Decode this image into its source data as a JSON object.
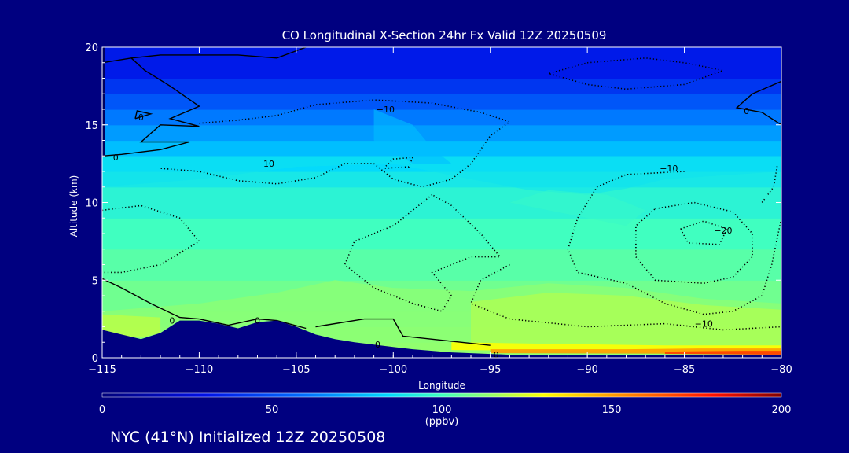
{
  "chart_data": {
    "type": "heatmap",
    "title": "CO Longitudinal X-Section 24hr  Fx Valid 12Z 20250509",
    "xlabel": "Longitude",
    "ylabel": "Altitude (km)",
    "xlim": [
      -115,
      -80
    ],
    "ylim": [
      0,
      20
    ],
    "x_ticks": [
      -115,
      -110,
      -105,
      -100,
      -95,
      -90,
      -85,
      -80
    ],
    "x_tick_labels": [
      "−115",
      "−110",
      "−105",
      "−100",
      "−95",
      "−90",
      "−85",
      "−80"
    ],
    "y_ticks": [
      0,
      5,
      10,
      15,
      20
    ],
    "y_tick_labels": [
      "0",
      "5",
      "10",
      "15",
      "20"
    ],
    "colorbar": {
      "min": 0,
      "max": 200,
      "ticks": [
        0,
        50,
        100,
        150,
        200
      ],
      "tick_labels": [
        "0",
        "50",
        "100",
        "150",
        "200"
      ],
      "unit": "(ppbv)"
    },
    "background_profile": {
      "altitudes_km": [
        0,
        1,
        2,
        3,
        5,
        7,
        9,
        11,
        12,
        13,
        14,
        15,
        16,
        17,
        18,
        20
      ],
      "co_ppbv": [
        125,
        118,
        112,
        108,
        104,
        100,
        95,
        90,
        85,
        78,
        70,
        62,
        52,
        42,
        33,
        20
      ]
    },
    "surface_boundary": {
      "longitude": [
        -115,
        -114,
        -113,
        -112,
        -111,
        -110,
        -109,
        -108,
        -107,
        -106,
        -105,
        -104,
        -103,
        -102,
        -101,
        -100,
        -99,
        -98,
        -97,
        -96,
        -95,
        -94,
        -93,
        -90,
        -85,
        -80
      ],
      "altitude_km": [
        1.8,
        1.5,
        1.2,
        1.6,
        2.4,
        2.4,
        2.2,
        1.9,
        2.3,
        2.4,
        2.0,
        1.5,
        1.2,
        1.0,
        0.85,
        0.7,
        0.55,
        0.45,
        0.35,
        0.3,
        0.25,
        0.2,
        0.18,
        0.15,
        0.15,
        0.15
      ]
    },
    "contour_labels": [
      {
        "text": "0",
        "lon": -114.3,
        "alt": 12.9
      },
      {
        "text": "0",
        "lon": -113.0,
        "alt": 15.5
      },
      {
        "text": "0",
        "lon": -111.4,
        "alt": 2.4
      },
      {
        "text": "0",
        "lon": -107.0,
        "alt": 2.4
      },
      {
        "text": "0",
        "lon": -100.8,
        "alt": 0.85
      },
      {
        "text": "0",
        "lon": -94.7,
        "alt": 0.2
      },
      {
        "text": "0",
        "lon": -81.8,
        "alt": 15.9
      },
      {
        "text": "−10",
        "lon": -100.4,
        "alt": 16.0
      },
      {
        "text": "−10",
        "lon": -106.6,
        "alt": 12.5
      },
      {
        "text": "−10",
        "lon": -85.8,
        "alt": 12.2
      },
      {
        "text": "−10",
        "lon": -84.0,
        "alt": 2.2
      },
      {
        "text": "−20",
        "lon": -83.0,
        "alt": 8.2
      }
    ]
  },
  "footer_text": "NYC (41°N) Initialized 12Z 20250508"
}
